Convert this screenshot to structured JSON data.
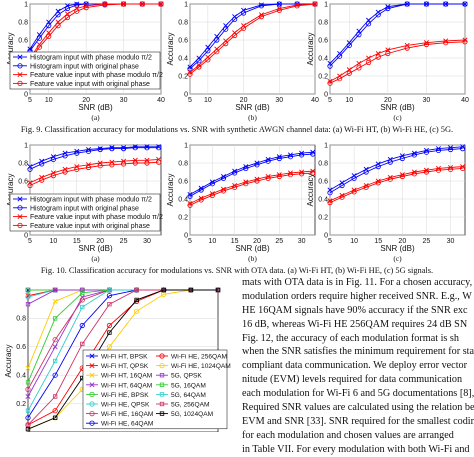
{
  "figure9": {
    "caption": "Fig. 9.   Classification accuracy for modulations vs. SNR with synthetic AWGN channel data: (a) Wi-Fi HT, (b) Wi-Fi HE, (c) 5G.",
    "xlabel": "SNR (dB)",
    "ylabel": "Accuracy",
    "panel_labels": [
      "(a)",
      "(b)",
      "(c)"
    ]
  },
  "figure10": {
    "caption": "Fig. 10.   Classification accuracy for modulations vs. SNR with OTA data. (a) Wi-Fi HT, (b) Wi-Fi HE, (c) 5G signals.",
    "xlabel": "SNR (dB)",
    "ylabel": "Accuracy",
    "panel_labels": [
      "(a)",
      "(b)",
      "(c)"
    ]
  },
  "figure11": {
    "ylabel": "Accuracy"
  },
  "legend_main": [
    "Histogram input with phase modulo  π/2",
    "Histogram input with original phase",
    "Feature value input with phase modulo  π/2",
    "Feature value input with original phase"
  ],
  "legend_fig11": [
    "Wi-Fi HT, BPSK",
    "Wi-Fi HE, 256QAM",
    "Wi-Fi HT, QPSK",
    "Wi-Fi HE, 1024QAM",
    "Wi-Fi HT, 16QAM",
    "5G, QPSK",
    "Wi-Fi HT, 64QAM",
    "5G, 16QAM",
    "Wi-Fi HE, BPSK",
    "5G, 64QAM",
    "Wi-Fi HE, QPSK",
    "5G, 256QAM",
    "Wi-Fi HE, 16QAM",
    "5G, 1024QAM",
    "Wi-Fi HE, 64QAM",
    ""
  ],
  "body_lines": [
    "mats with OTA data is in Fig. 11. For a chosen accuracy, h",
    "modulation orders require higher received SNR. E.g., W",
    "HE 16QAM signals have 90% accuracy if the SNR exc",
    "16 dB, whereas Wi-Fi HE 256QAM requires 24 dB SN",
    "Fig. 12, the accuracy of each modulation format is sh",
    "when the SNR satisfies the minimum requirement for stand",
    "compliant data communication. We deploy error vector",
    "nitude (EVM) levels required for data communication",
    "each modulation for Wi-Fi 6 and 5G documentations [8],",
    "Required SNR values are calculated using the relation betw",
    "EVM and SNR [33]. SNR required for the smallest coding",
    "for each modulation and chosen values are arranged",
    "in Table VII. For every modulation with both Wi-Fi and"
  ],
  "chart_data": [
    {
      "type": "line",
      "figure": "Fig. 9",
      "panel": "(a)",
      "xlabel": "SNR (dB)",
      "ylabel": "Accuracy",
      "xlim": [
        5,
        40
      ],
      "ylim": [
        0,
        1
      ],
      "xticks": [
        5,
        10,
        20,
        30,
        40
      ],
      "yticks": [
        0,
        0.2,
        0.4,
        0.6,
        0.8,
        1
      ],
      "x": [
        5,
        7.5,
        10,
        12.5,
        15,
        17.5,
        20,
        25,
        30,
        35,
        40
      ],
      "series": [
        {
          "name": "Histogram input with phase modulo  π/2",
          "color": "#0000ff",
          "marker": "x",
          "values": [
            0.5,
            0.66,
            0.8,
            0.92,
            0.98,
            1.0,
            1.0,
            1.0,
            1.0,
            1.0,
            1.0
          ]
        },
        {
          "name": "Histogram input with original phase",
          "color": "#0000ff",
          "marker": "o",
          "values": [
            0.48,
            0.62,
            0.76,
            0.88,
            0.95,
            0.99,
            1.0,
            1.0,
            1.0,
            1.0,
            1.0
          ]
        },
        {
          "name": "Feature value input with phase modulo  π/2",
          "color": "#ff0000",
          "marker": "x",
          "values": [
            0.4,
            0.55,
            0.68,
            0.8,
            0.89,
            0.95,
            0.98,
            1.0,
            1.0,
            1.0,
            1.0
          ]
        },
        {
          "name": "Feature value input with original phase",
          "color": "#ff0000",
          "marker": "o",
          "values": [
            0.38,
            0.52,
            0.64,
            0.76,
            0.85,
            0.92,
            0.96,
            0.99,
            1.0,
            1.0,
            1.0
          ]
        }
      ]
    },
    {
      "type": "line",
      "figure": "Fig. 9",
      "panel": "(b)",
      "xlabel": "SNR (dB)",
      "ylabel": "Accuracy",
      "xlim": [
        5,
        40
      ],
      "ylim": [
        0,
        1
      ],
      "xticks": [
        5,
        10,
        20,
        30,
        40
      ],
      "yticks": [
        0,
        0.2,
        0.4,
        0.6,
        0.8,
        1
      ],
      "x": [
        5,
        7.5,
        10,
        12.5,
        15,
        17.5,
        20,
        25,
        30,
        35,
        40
      ],
      "series": [
        {
          "name": "Histogram input with phase modulo  π/2",
          "color": "#0000ff",
          "marker": "x",
          "values": [
            0.3,
            0.4,
            0.52,
            0.64,
            0.76,
            0.86,
            0.93,
            0.99,
            1.0,
            1.0,
            1.0
          ]
        },
        {
          "name": "Histogram input with original phase",
          "color": "#0000ff",
          "marker": "o",
          "values": [
            0.28,
            0.37,
            0.48,
            0.6,
            0.72,
            0.83,
            0.9,
            0.98,
            1.0,
            1.0,
            1.0
          ]
        },
        {
          "name": "Feature value input with phase modulo  π/2",
          "color": "#ff0000",
          "marker": "x",
          "values": [
            0.24,
            0.32,
            0.41,
            0.5,
            0.59,
            0.68,
            0.76,
            0.88,
            0.95,
            0.99,
            1.0
          ]
        },
        {
          "name": "Feature value input with original phase",
          "color": "#ff0000",
          "marker": "o",
          "values": [
            0.22,
            0.3,
            0.38,
            0.47,
            0.56,
            0.65,
            0.73,
            0.86,
            0.93,
            0.98,
            1.0
          ]
        }
      ]
    },
    {
      "type": "line",
      "figure": "Fig. 9",
      "panel": "(c)",
      "xlabel": "SNR (dB)",
      "ylabel": "Accuracy",
      "xlim": [
        5,
        40
      ],
      "ylim": [
        0,
        1
      ],
      "xticks": [
        5,
        10,
        20,
        30,
        40
      ],
      "yticks": [
        0,
        0.2,
        0.4,
        0.6,
        0.8,
        1
      ],
      "x": [
        5,
        7.5,
        10,
        12.5,
        15,
        17.5,
        20,
        25,
        30,
        35,
        40
      ],
      "series": [
        {
          "name": "Histogram input with phase modulo  π/2",
          "color": "#0000ff",
          "marker": "x",
          "values": [
            0.34,
            0.45,
            0.57,
            0.7,
            0.82,
            0.91,
            0.97,
            1.0,
            1.0,
            1.0,
            1.0
          ]
        },
        {
          "name": "Histogram input with original phase",
          "color": "#0000ff",
          "marker": "o",
          "values": [
            0.31,
            0.42,
            0.54,
            0.66,
            0.78,
            0.88,
            0.95,
            1.0,
            1.0,
            1.0,
            1.0
          ]
        },
        {
          "name": "Feature value input with phase modulo  π/2",
          "color": "#ff0000",
          "marker": "x",
          "values": [
            0.14,
            0.2,
            0.27,
            0.34,
            0.4,
            0.45,
            0.49,
            0.54,
            0.57,
            0.59,
            0.6
          ]
        },
        {
          "name": "Feature value input with original phase",
          "color": "#ff0000",
          "marker": "o",
          "values": [
            0.12,
            0.17,
            0.23,
            0.29,
            0.35,
            0.41,
            0.45,
            0.51,
            0.55,
            0.57,
            0.58
          ]
        }
      ]
    },
    {
      "type": "line",
      "figure": "Fig. 10",
      "panel": "(a)",
      "xlabel": "SNR (dB)",
      "ylabel": "Accuracy",
      "xlim": [
        5,
        33
      ],
      "ylim": [
        0,
        1
      ],
      "xticks": [
        5,
        10,
        15,
        20,
        25,
        30
      ],
      "yticks": [
        0,
        0.2,
        0.4,
        0.6,
        0.8,
        1
      ],
      "x": [
        5,
        7.5,
        10,
        12.5,
        15,
        17.5,
        20,
        22.5,
        25,
        27.5,
        30,
        32.5
      ],
      "series": [
        {
          "name": "Histogram input with phase modulo  π/2",
          "color": "#0000ff",
          "marker": "x",
          "values": [
            0.76,
            0.82,
            0.87,
            0.91,
            0.93,
            0.95,
            0.96,
            0.97,
            0.97,
            0.98,
            0.98,
            0.98
          ]
        },
        {
          "name": "Histogram input with original phase",
          "color": "#0000ff",
          "marker": "o",
          "values": [
            0.73,
            0.79,
            0.84,
            0.88,
            0.91,
            0.93,
            0.95,
            0.96,
            0.96,
            0.97,
            0.97,
            0.97
          ]
        },
        {
          "name": "Feature value input with phase modulo  π/2",
          "color": "#ff0000",
          "marker": "x",
          "values": [
            0.58,
            0.64,
            0.69,
            0.73,
            0.76,
            0.78,
            0.8,
            0.81,
            0.82,
            0.83,
            0.83,
            0.84
          ]
        },
        {
          "name": "Feature value input with original phase",
          "color": "#ff0000",
          "marker": "o",
          "values": [
            0.55,
            0.61,
            0.66,
            0.7,
            0.73,
            0.75,
            0.77,
            0.78,
            0.79,
            0.8,
            0.8,
            0.81
          ]
        }
      ]
    },
    {
      "type": "line",
      "figure": "Fig. 10",
      "panel": "(b)",
      "xlabel": "SNR (dB)",
      "ylabel": "Accuracy",
      "xlim": [
        5,
        33
      ],
      "ylim": [
        0,
        1
      ],
      "xticks": [
        5,
        10,
        15,
        20,
        25,
        30
      ],
      "yticks": [
        0,
        0.2,
        0.4,
        0.6,
        0.8,
        1
      ],
      "x": [
        5,
        7.5,
        10,
        12.5,
        15,
        17.5,
        20,
        22.5,
        25,
        27.5,
        30,
        32.5
      ],
      "series": [
        {
          "name": "Histogram input with phase modulo  π/2",
          "color": "#0000ff",
          "marker": "x",
          "values": [
            0.45,
            0.52,
            0.59,
            0.65,
            0.71,
            0.76,
            0.8,
            0.84,
            0.87,
            0.89,
            0.91,
            0.92
          ]
        },
        {
          "name": "Histogram input with original phase",
          "color": "#0000ff",
          "marker": "o",
          "values": [
            0.43,
            0.5,
            0.57,
            0.63,
            0.69,
            0.74,
            0.78,
            0.82,
            0.85,
            0.87,
            0.89,
            0.9
          ]
        },
        {
          "name": "Feature value input with phase modulo  π/2",
          "color": "#ff0000",
          "marker": "x",
          "values": [
            0.35,
            0.41,
            0.46,
            0.51,
            0.55,
            0.59,
            0.62,
            0.65,
            0.67,
            0.69,
            0.7,
            0.71
          ]
        },
        {
          "name": "Feature value input with original phase",
          "color": "#ff0000",
          "marker": "o",
          "values": [
            0.33,
            0.39,
            0.44,
            0.49,
            0.53,
            0.57,
            0.6,
            0.63,
            0.65,
            0.67,
            0.68,
            0.69
          ]
        }
      ]
    },
    {
      "type": "line",
      "figure": "Fig. 10",
      "panel": "(c)",
      "xlabel": "SNR (dB)",
      "ylabel": "Accuracy",
      "xlim": [
        5,
        33
      ],
      "ylim": [
        0,
        1
      ],
      "xticks": [
        5,
        10,
        15,
        20,
        25,
        30
      ],
      "yticks": [
        0,
        0.2,
        0.4,
        0.6,
        0.8,
        1
      ],
      "x": [
        5,
        7.5,
        10,
        12.5,
        15,
        17.5,
        20,
        22.5,
        25,
        27.5,
        30,
        32.5
      ],
      "series": [
        {
          "name": "Histogram input with phase modulo  π/2",
          "color": "#0000ff",
          "marker": "x",
          "values": [
            0.5,
            0.58,
            0.66,
            0.73,
            0.79,
            0.84,
            0.88,
            0.91,
            0.94,
            0.96,
            0.97,
            0.98
          ]
        },
        {
          "name": "Histogram input with original phase",
          "color": "#0000ff",
          "marker": "o",
          "values": [
            0.47,
            0.55,
            0.63,
            0.7,
            0.76,
            0.81,
            0.85,
            0.89,
            0.92,
            0.94,
            0.95,
            0.96
          ]
        },
        {
          "name": "Feature value input with phase modulo  π/2",
          "color": "#ff0000",
          "marker": "x",
          "values": [
            0.38,
            0.44,
            0.5,
            0.55,
            0.6,
            0.64,
            0.67,
            0.7,
            0.72,
            0.74,
            0.75,
            0.76
          ]
        },
        {
          "name": "Feature value input with original phase",
          "color": "#ff0000",
          "marker": "o",
          "values": [
            0.36,
            0.42,
            0.48,
            0.53,
            0.58,
            0.62,
            0.65,
            0.68,
            0.7,
            0.72,
            0.73,
            0.74
          ]
        }
      ]
    },
    {
      "type": "line",
      "figure": "Fig. 11",
      "xlabel": "",
      "ylabel": "Accuracy",
      "xlim": [
        5,
        40
      ],
      "ylim": [
        0,
        1
      ],
      "yticks": [
        0.2,
        0.4,
        0.6,
        0.8
      ],
      "x": [
        5,
        10,
        15,
        20,
        25,
        30,
        35,
        40
      ],
      "series": [
        {
          "name": "Wi-Fi HT, BPSK",
          "color": "#0000ff",
          "marker": "x",
          "values": [
            1.0,
            1.0,
            1.0,
            1.0,
            1.0,
            1.0,
            1.0,
            1.0
          ]
        },
        {
          "name": "Wi-Fi HT, QPSK",
          "color": "#ff0000",
          "marker": "x",
          "values": [
            0.96,
            1.0,
            1.0,
            1.0,
            1.0,
            1.0,
            1.0,
            1.0
          ]
        },
        {
          "name": "Wi-Fi HT, 16QAM",
          "color": "#ffcc00",
          "marker": "x",
          "values": [
            0.45,
            0.92,
            1.0,
            1.0,
            1.0,
            1.0,
            1.0,
            1.0
          ]
        },
        {
          "name": "Wi-Fi HT, 64QAM",
          "color": "#9933cc",
          "marker": "x",
          "values": [
            0.25,
            0.6,
            0.95,
            1.0,
            1.0,
            1.0,
            1.0,
            1.0
          ]
        },
        {
          "name": "Wi-Fi HE, BPSK",
          "color": "#33cc33",
          "marker": "o",
          "values": [
            1.0,
            1.0,
            1.0,
            1.0,
            1.0,
            1.0,
            1.0,
            1.0
          ]
        },
        {
          "name": "Wi-Fi HE, QPSK",
          "color": "#33cccc",
          "marker": "o",
          "values": [
            0.95,
            1.0,
            1.0,
            1.0,
            1.0,
            1.0,
            1.0,
            1.0
          ]
        },
        {
          "name": "Wi-Fi HE, 16QAM",
          "color": "#cc3366",
          "marker": "o",
          "values": [
            0.3,
            0.65,
            0.93,
            1.0,
            1.0,
            1.0,
            1.0,
            1.0
          ]
        },
        {
          "name": "Wi-Fi HE, 64QAM",
          "color": "#0000ff",
          "marker": "o",
          "values": [
            0.1,
            0.4,
            0.75,
            0.96,
            1.0,
            1.0,
            1.0,
            1.0
          ]
        },
        {
          "name": "Wi-Fi HE, 256QAM",
          "color": "#ff0000",
          "marker": "o",
          "values": [
            0.05,
            0.15,
            0.45,
            0.75,
            0.92,
            1.0,
            1.0,
            1.0
          ]
        },
        {
          "name": "Wi-Fi HE, 1024QAM",
          "color": "#ffcc00",
          "marker": "o",
          "values": [
            0.02,
            0.1,
            0.3,
            0.6,
            0.85,
            0.97,
            1.0,
            1.0
          ]
        },
        {
          "name": "5G, QPSK",
          "color": "#9933cc",
          "marker": "square",
          "values": [
            0.9,
            1.0,
            1.0,
            1.0,
            1.0,
            1.0,
            1.0,
            1.0
          ]
        },
        {
          "name": "5G, 16QAM",
          "color": "#33cc33",
          "marker": "square",
          "values": [
            0.35,
            0.8,
            0.98,
            1.0,
            1.0,
            1.0,
            1.0,
            1.0
          ]
        },
        {
          "name": "5G, 64QAM",
          "color": "#33cccc",
          "marker": "square",
          "values": [
            0.15,
            0.5,
            0.88,
            1.0,
            1.0,
            1.0,
            1.0,
            1.0
          ]
        },
        {
          "name": "5G, 256QAM",
          "color": "#cc3366",
          "marker": "square",
          "values": [
            0.05,
            0.25,
            0.62,
            0.9,
            1.0,
            1.0,
            1.0,
            1.0
          ]
        },
        {
          "name": "5G, 1024QAM",
          "color": "#000000",
          "marker": "square",
          "values": [
            0.02,
            0.1,
            0.38,
            0.7,
            0.93,
            1.0,
            1.0,
            1.0
          ]
        }
      ]
    }
  ]
}
